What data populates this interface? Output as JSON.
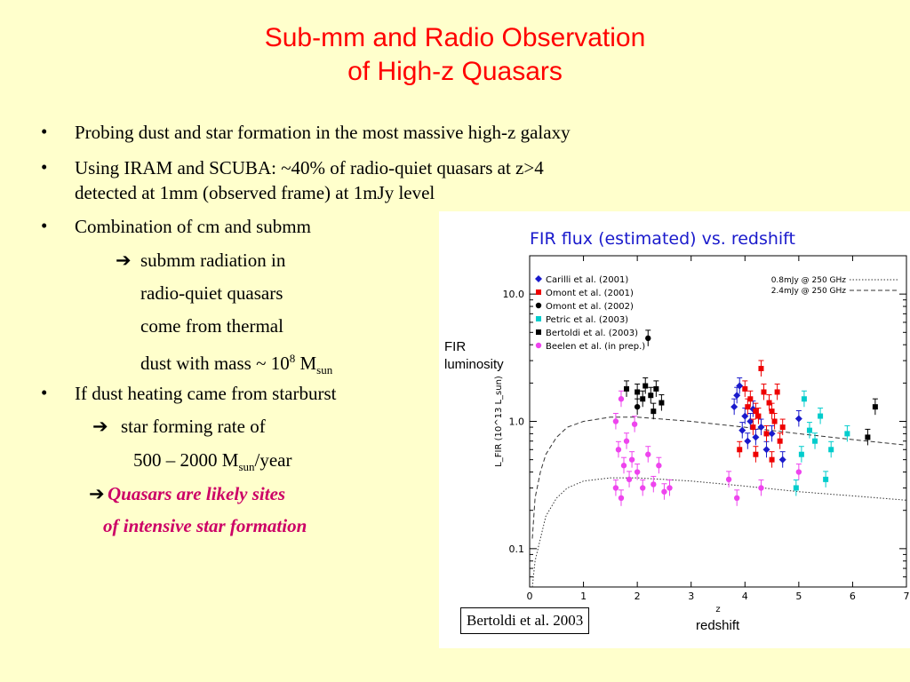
{
  "slide": {
    "title_line1": "Sub-mm and Radio Observation",
    "title_line2": "of High-z Quasars",
    "bullets": [
      "Probing dust and star formation in the most massive high-z galaxy",
      "Using IRAM and SCUBA: ~40% of radio-quiet quasars at z>4",
      "detected at 1mm (observed frame) at 1mJy level",
      "Combination of cm and submm",
      "If dust heating came from starburst"
    ],
    "arrow_glyph": "➔",
    "sub1": "submm radiation in",
    "sub2": "radio-quiet quasars",
    "sub3": "come from thermal",
    "sub4_pre": "dust with mass ~ 10",
    "sub4_sup": "8",
    "sub4_mid": " M",
    "sub4_sub": "sun",
    "sf1": "star forming rate of",
    "sf2_pre": "500 – 2000 M",
    "sf2_sub": "sun",
    "sf2_post": "/year",
    "concl1": "Quasars are likely sites",
    "concl2": "of intensive star formation",
    "bullet_glyph": "•",
    "colors": {
      "title": "#ff0000",
      "background": "#ffffcc",
      "conclusion": "#cc0066"
    }
  },
  "figure": {
    "plot_title": "FIR flux (estimated) vs. redshift",
    "fir_label_line1": "FIR",
    "fir_label_line2": "luminosity",
    "redshift_label": "redshift",
    "credit": "Bertoldi et al. 2003",
    "y_axis_label": "L_FIR (10^13 L_sun)"
  },
  "chart_data": {
    "type": "scatter",
    "title": "FIR flux (estimated) vs. redshift",
    "xlabel": "z",
    "ylabel": "L_FIR (10^13 L_sun)",
    "xlim": [
      0,
      7
    ],
    "ylim": [
      0.05,
      20
    ],
    "y_scale": "log",
    "x_ticks": [
      0,
      1,
      2,
      3,
      4,
      5,
      6,
      7
    ],
    "y_ticks": [
      0.1,
      1.0,
      10.0
    ],
    "y_tick_labels": [
      "0.1",
      "1.0",
      "10.0"
    ],
    "legend_position": "top-left",
    "series": [
      {
        "name": "Carilli et al. (2001)",
        "marker": "diamond",
        "color": "#1a1acc",
        "points": [
          [
            3.8,
            1.3
          ],
          [
            3.85,
            1.6
          ],
          [
            3.9,
            1.9
          ],
          [
            3.95,
            0.85
          ],
          [
            4.0,
            1.1
          ],
          [
            4.05,
            0.7
          ],
          [
            4.1,
            1.0
          ],
          [
            4.2,
            0.75
          ],
          [
            4.3,
            0.9
          ],
          [
            4.4,
            0.6
          ],
          [
            4.5,
            0.8
          ],
          [
            4.7,
            0.5
          ],
          [
            5.0,
            1.05
          ],
          [
            4.15,
            1.25
          ]
        ]
      },
      {
        "name": "Omont et al. (2001)",
        "marker": "square",
        "color": "#ee0000",
        "points": [
          [
            3.9,
            0.6
          ],
          [
            4.0,
            1.8
          ],
          [
            4.05,
            1.3
          ],
          [
            4.1,
            1.5
          ],
          [
            4.15,
            0.9
          ],
          [
            4.2,
            1.2
          ],
          [
            4.25,
            1.1
          ],
          [
            4.3,
            2.6
          ],
          [
            4.35,
            1.7
          ],
          [
            4.4,
            0.8
          ],
          [
            4.45,
            1.4
          ],
          [
            4.5,
            0.5
          ],
          [
            4.55,
            1.0
          ],
          [
            4.6,
            1.7
          ],
          [
            4.65,
            0.7
          ],
          [
            4.2,
            0.55
          ],
          [
            4.5,
            1.2
          ],
          [
            4.7,
            0.9
          ]
        ]
      },
      {
        "name": "Omont et al. (2002)",
        "marker": "circle",
        "color": "#000000",
        "points": [
          [
            2.2,
            4.5
          ],
          [
            2.0,
            1.3
          ]
        ]
      },
      {
        "name": "Petric et al. (2003)",
        "marker": "square",
        "color": "#00cccc",
        "points": [
          [
            5.1,
            1.5
          ],
          [
            5.2,
            0.85
          ],
          [
            5.4,
            1.1
          ],
          [
            5.6,
            0.6
          ],
          [
            5.3,
            0.7
          ],
          [
            4.95,
            0.3
          ],
          [
            5.5,
            0.35
          ],
          [
            5.9,
            0.8
          ],
          [
            5.05,
            0.55
          ]
        ]
      },
      {
        "name": "Bertoldi et al. (2003)",
        "marker": "square",
        "color": "#000000",
        "points": [
          [
            1.8,
            1.8
          ],
          [
            2.0,
            1.7
          ],
          [
            2.15,
            1.9
          ],
          [
            2.25,
            1.6
          ],
          [
            2.35,
            1.8
          ],
          [
            2.45,
            1.4
          ],
          [
            6.28,
            0.75
          ],
          [
            6.42,
            1.3
          ],
          [
            2.3,
            1.2
          ],
          [
            2.1,
            1.5
          ]
        ]
      },
      {
        "name": "Beelen et al. (in prep.)",
        "marker": "circle",
        "color": "#ee44ee",
        "points": [
          [
            1.6,
            1.0
          ],
          [
            1.65,
            0.6
          ],
          [
            1.7,
            1.5
          ],
          [
            1.75,
            0.45
          ],
          [
            1.8,
            0.7
          ],
          [
            1.85,
            0.35
          ],
          [
            1.9,
            0.5
          ],
          [
            1.95,
            0.95
          ],
          [
            2.0,
            0.4
          ],
          [
            2.1,
            0.3
          ],
          [
            2.2,
            0.55
          ],
          [
            2.3,
            0.32
          ],
          [
            2.4,
            0.45
          ],
          [
            2.5,
            0.28
          ],
          [
            2.6,
            0.3
          ],
          [
            1.6,
            0.3
          ],
          [
            1.7,
            0.25
          ],
          [
            3.7,
            0.35
          ],
          [
            3.85,
            0.25
          ],
          [
            4.3,
            0.3
          ],
          [
            5.0,
            0.4
          ]
        ]
      }
    ],
    "curves": [
      {
        "name": "0.8mJy @ 250 GHz",
        "style": "dotted",
        "points": [
          [
            0.05,
            0.05
          ],
          [
            0.1,
            0.08
          ],
          [
            0.2,
            0.12
          ],
          [
            0.3,
            0.18
          ],
          [
            0.5,
            0.25
          ],
          [
            0.7,
            0.3
          ],
          [
            1.0,
            0.34
          ],
          [
            1.5,
            0.36
          ],
          [
            2.0,
            0.36
          ],
          [
            3.0,
            0.34
          ],
          [
            4.0,
            0.31
          ],
          [
            5.0,
            0.28
          ],
          [
            6.0,
            0.26
          ],
          [
            7.0,
            0.24
          ]
        ]
      },
      {
        "name": "2.4mJy @ 250 GHz",
        "style": "dashed",
        "points": [
          [
            0.05,
            0.12
          ],
          [
            0.1,
            0.25
          ],
          [
            0.2,
            0.4
          ],
          [
            0.3,
            0.55
          ],
          [
            0.5,
            0.75
          ],
          [
            0.7,
            0.9
          ],
          [
            1.0,
            1.0
          ],
          [
            1.5,
            1.08
          ],
          [
            2.0,
            1.08
          ],
          [
            3.0,
            1.0
          ],
          [
            4.0,
            0.9
          ],
          [
            5.0,
            0.8
          ],
          [
            6.0,
            0.72
          ],
          [
            7.0,
            0.65
          ]
        ]
      }
    ]
  }
}
